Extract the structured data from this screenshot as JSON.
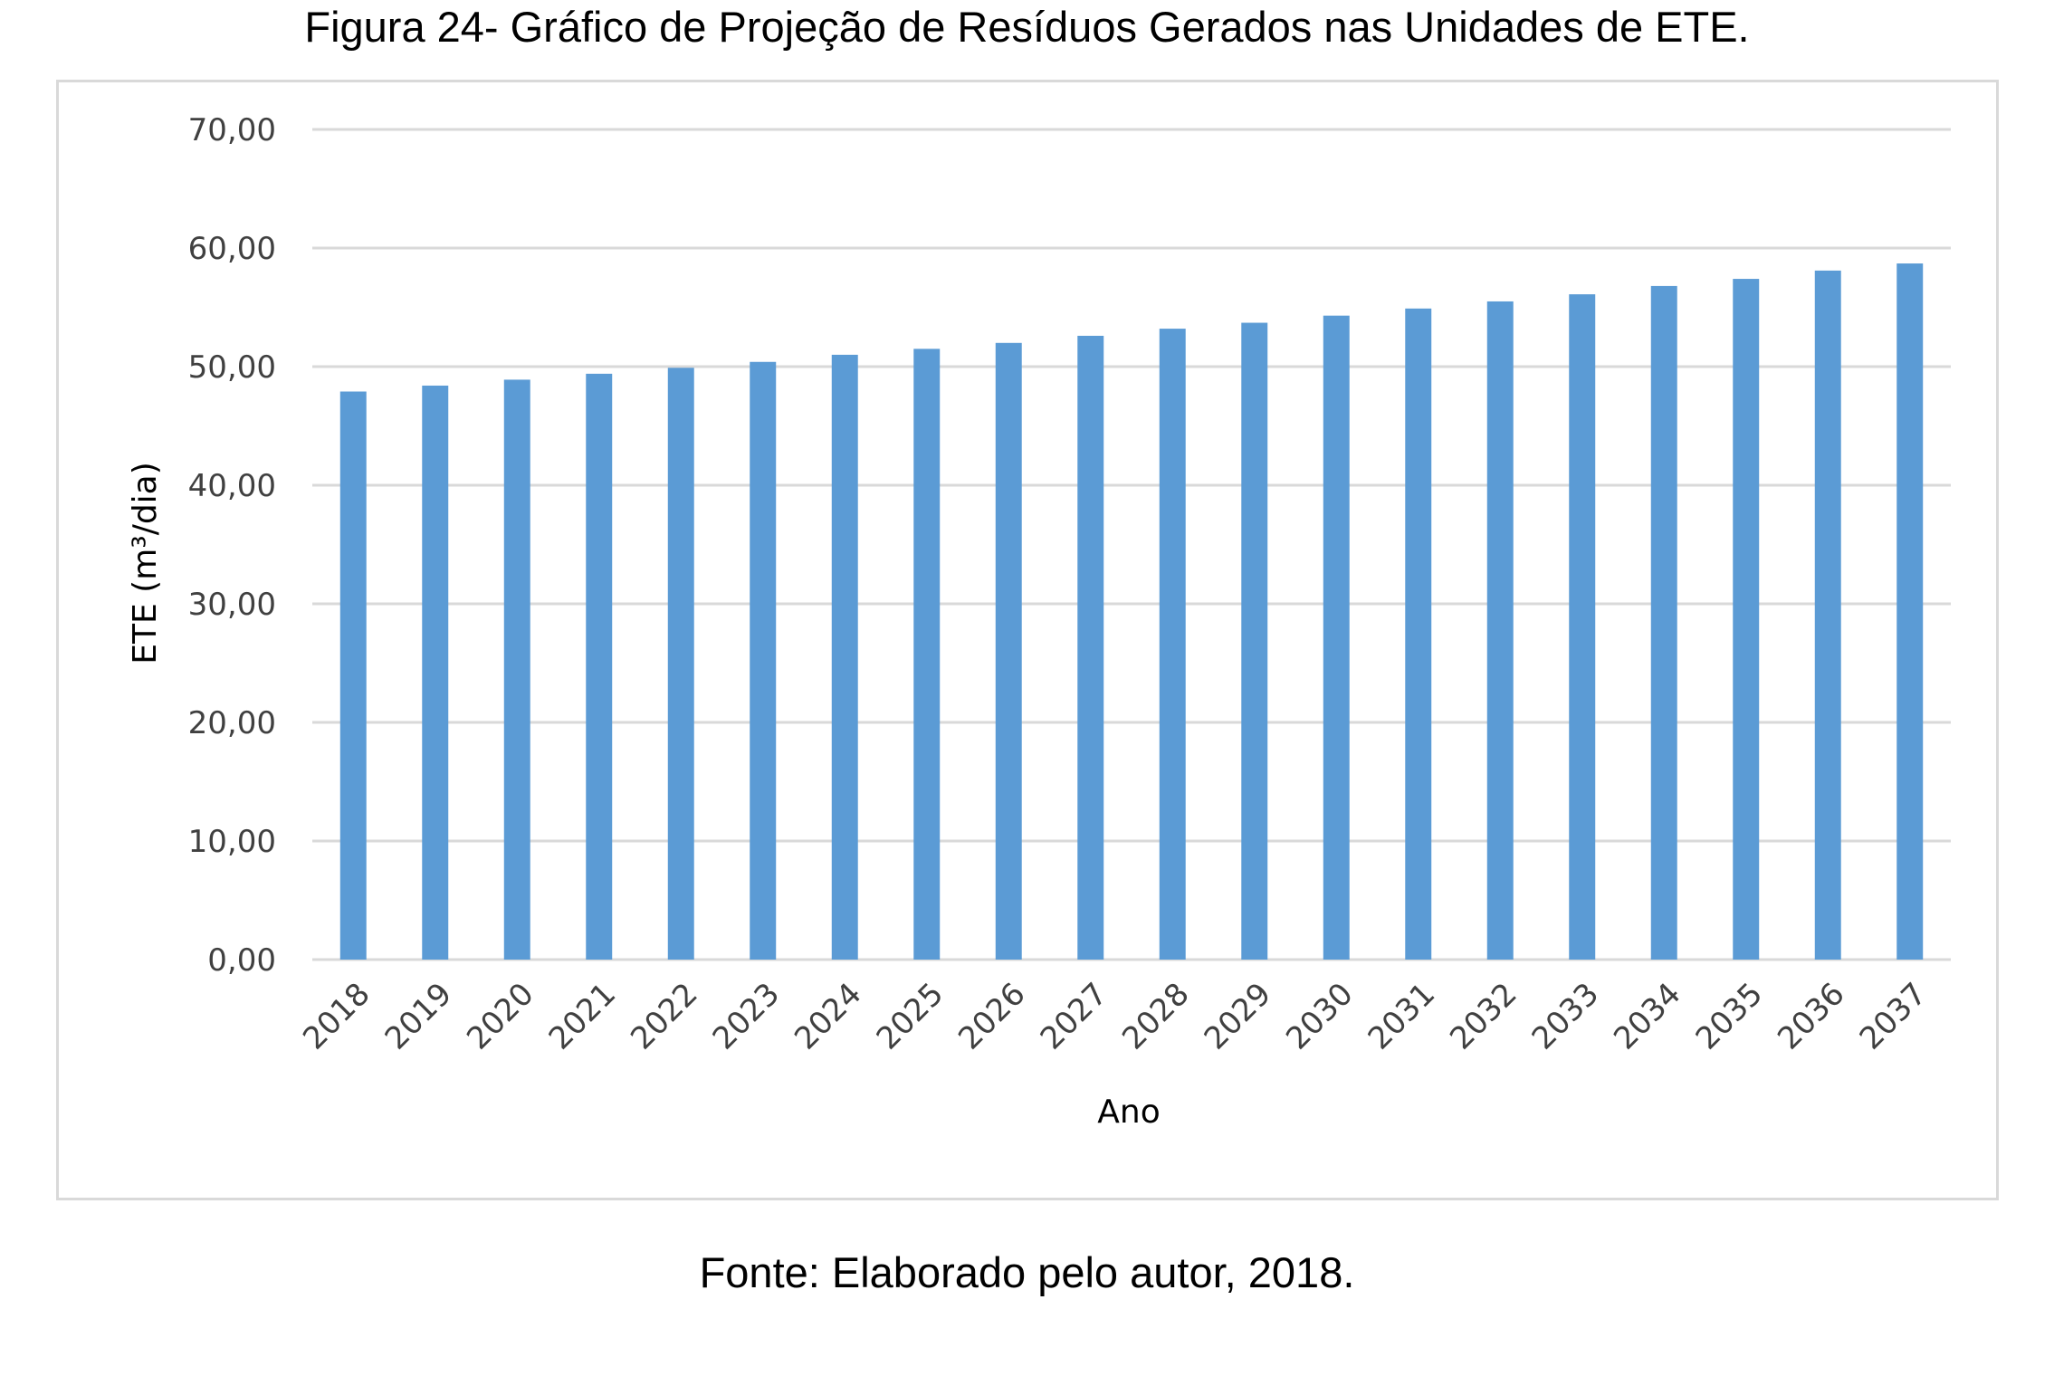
{
  "figure_caption": "Figura 24- Gráfico de Projeção de Resíduos Gerados nas Unidades de ETE.",
  "source_caption": "Fonte: Elaborado pelo autor, 2018.",
  "chart_data": {
    "type": "bar",
    "title": "",
    "xlabel": "Ano",
    "ylabel": "ETE (m³/dia)",
    "ylim": [
      0,
      70
    ],
    "y_ticks": [
      "0,00",
      "10,00",
      "20,00",
      "30,00",
      "40,00",
      "50,00",
      "60,00",
      "70,00"
    ],
    "grid": true,
    "legend": "none",
    "bar_color": "#5b9bd5",
    "categories": [
      "2018",
      "2019",
      "2020",
      "2021",
      "2022",
      "2023",
      "2024",
      "2025",
      "2026",
      "2027",
      "2028",
      "2029",
      "2030",
      "2031",
      "2032",
      "2033",
      "2034",
      "2035",
      "2036",
      "2037"
    ],
    "values": [
      47.9,
      48.4,
      48.9,
      49.4,
      49.9,
      50.4,
      51.0,
      51.5,
      52.0,
      52.6,
      53.2,
      53.7,
      54.3,
      54.9,
      55.5,
      56.1,
      56.8,
      57.4,
      58.1,
      58.7
    ]
  }
}
